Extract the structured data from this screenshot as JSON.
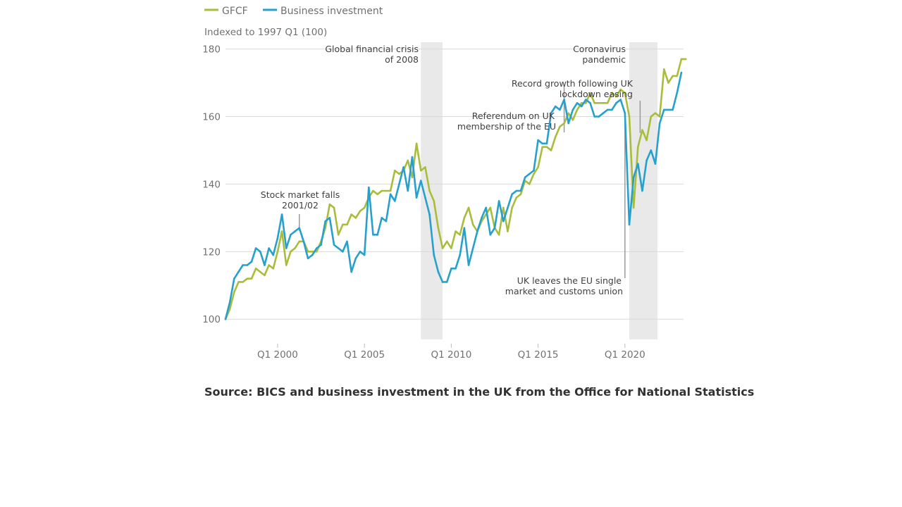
{
  "legend": [
    {
      "name": "GFCF",
      "color": "#a8bd3a"
    },
    {
      "name": "Business investment",
      "color": "#27a0cc"
    }
  ],
  "subtitle": "Indexed to 1997 Q1 (100)",
  "source": "Source: BICS and business investment in the UK from the Office for National Statistics",
  "chart_data": {
    "type": "line",
    "ylabel": "Indexed to 1997 Q1 (100)",
    "ylim": [
      94,
      182
    ],
    "yticks": [
      100,
      120,
      140,
      160,
      180
    ],
    "xlim": [
      1997.0,
      2023.375
    ],
    "xticks": [
      {
        "label": "Q1 2000",
        "value": 2000.0
      },
      {
        "label": "Q1 2005",
        "value": 2005.0
      },
      {
        "label": "Q1 2010",
        "value": 2010.0
      },
      {
        "label": "Q1 2015",
        "value": 2015.0
      },
      {
        "label": "Q1 2020",
        "value": 2020.0
      }
    ],
    "grid": true,
    "legend_position": "top-left",
    "x_start": "1997 Q1",
    "x_step": "quarter",
    "series": [
      {
        "name": "GFCF",
        "color": "#a8bd3a",
        "values": [
          100,
          103,
          108,
          111,
          111,
          112,
          112,
          115,
          114,
          113,
          116,
          115,
          120,
          126,
          116,
          120,
          121,
          123,
          123,
          120,
          120,
          120,
          123,
          127,
          134,
          133,
          125,
          128,
          128,
          131,
          130,
          132,
          133,
          136,
          138,
          137,
          138,
          138,
          138,
          144,
          143,
          144,
          147,
          142,
          152,
          144,
          145,
          138,
          135,
          127,
          121,
          123,
          121,
          126,
          125,
          130,
          133,
          128,
          126,
          129,
          131,
          133,
          127,
          125,
          133,
          126,
          133,
          136,
          137,
          141,
          140,
          143,
          145,
          151,
          151,
          150,
          154,
          157,
          158,
          161,
          159,
          162,
          164,
          164,
          167,
          164,
          164,
          164,
          164,
          167,
          166,
          168,
          167,
          160,
          133,
          151,
          156,
          153,
          160,
          161,
          160,
          174,
          170,
          172,
          172,
          177,
          177
        ]
      },
      {
        "name": "Business investment",
        "color": "#27a0cc",
        "values": [
          100,
          105,
          112,
          114,
          116,
          116,
          117,
          121,
          120,
          116,
          121,
          119,
          124,
          131,
          121,
          125,
          126,
          127,
          123,
          118,
          119,
          121,
          122,
          129,
          130,
          122,
          121,
          120,
          123,
          114,
          118,
          120,
          119,
          139,
          125,
          125,
          130,
          129,
          137,
          135,
          140,
          145,
          138,
          148,
          136,
          141,
          136,
          131,
          119,
          114,
          111,
          111,
          115,
          115,
          119,
          127,
          116,
          121,
          126,
          130,
          133,
          125,
          127,
          135,
          129,
          133,
          137,
          138,
          138,
          142,
          143,
          144,
          153,
          152,
          152,
          161,
          163,
          162,
          165,
          158,
          162,
          164,
          163,
          165,
          164,
          160,
          160,
          161,
          162,
          162,
          164,
          165,
          161,
          128,
          142,
          146,
          138,
          147,
          150,
          146,
          158,
          162,
          162,
          162,
          167,
          173
        ]
      }
    ],
    "shaded_periods": [
      {
        "start": 2008.25,
        "end": 2009.5
      },
      {
        "start": 2020.25,
        "end": 2021.875
      }
    ],
    "annotations": [
      {
        "lines": [
          "Global financial crisis",
          "of 2008"
        ]
      },
      {
        "lines": [
          "Coronavirus",
          "pandemic"
        ]
      },
      {
        "lines": [
          "Record growth following UK",
          "lockdown easing"
        ],
        "x": 2020.875,
        "y": 156
      },
      {
        "lines": [
          "Referendum on UK",
          "membership of the EU"
        ],
        "x": 2016.5,
        "y": 162
      },
      {
        "lines": [
          "Stock market falls",
          "2001/02"
        ],
        "x": 2001.25,
        "y": 127
      },
      {
        "lines": [
          "UK leaves the EU single",
          "market and customs union"
        ],
        "x": 2020.0,
        "y": 160
      }
    ]
  }
}
